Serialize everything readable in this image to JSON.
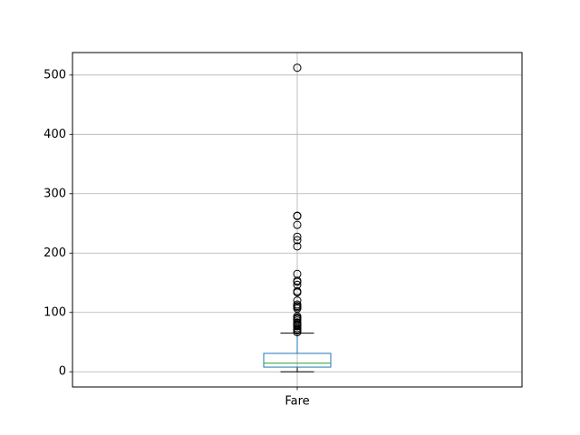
{
  "chart_data": {
    "type": "box",
    "title": "",
    "xlabel": "",
    "ylabel": "",
    "categories": [
      "Fare"
    ],
    "ylim": [
      -25.6,
      537.9
    ],
    "yticks": [
      0,
      100,
      200,
      300,
      400,
      500
    ],
    "grid": true,
    "box": {
      "whisker_low": 0,
      "q1": 7.9,
      "median": 14.45,
      "q3": 31.0,
      "whisker_high": 65.0
    },
    "outliers": [
      66.6,
      69.55,
      71.0,
      73.5,
      76.73,
      77.29,
      78.85,
      79.2,
      80.0,
      82.17,
      83.16,
      86.5,
      89.1,
      90.0,
      91.08,
      93.5,
      106.43,
      108.9,
      110.88,
      113.28,
      120.0,
      133.65,
      135.63,
      146.52,
      151.55,
      153.46,
      164.87,
      211.34,
      221.78,
      227.53,
      247.52,
      262.38,
      263.0,
      512.33
    ],
    "colors": {
      "box": "#1f77b4",
      "median": "#2ca02c",
      "whisker": "#000000",
      "grid": "#b0b0b0",
      "outlier": "#000000"
    }
  }
}
